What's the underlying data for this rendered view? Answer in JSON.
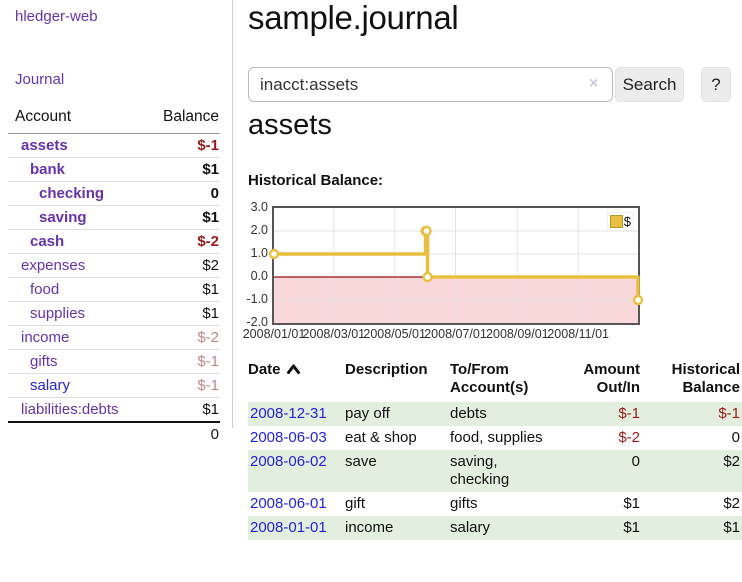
{
  "app": {
    "brand": "hledger-web",
    "nav": {
      "journal": "Journal"
    }
  },
  "theme": {
    "link_purple": "#6633aa",
    "link_blue": "#2323d8",
    "negative_strong": "#9b1a1a",
    "negative_soft": "#c08585",
    "row_stripe_green": "#e3efde",
    "chart_gold": "#e9bf40",
    "chart_negative_pink": "#f8d8d8",
    "chart_zero_line": "#960f0f"
  },
  "sidebar": {
    "columns": {
      "account": "Account",
      "balance": "Balance"
    },
    "accounts": [
      {
        "name": "assets",
        "balance": "$-1"
      },
      {
        "name": "bank",
        "balance": "$1"
      },
      {
        "name": "checking",
        "balance": "0"
      },
      {
        "name": "saving",
        "balance": "$1"
      },
      {
        "name": "cash",
        "balance": "$-2"
      },
      {
        "name": "expenses",
        "balance": "$2"
      },
      {
        "name": "food",
        "balance": "$1"
      },
      {
        "name": "supplies",
        "balance": "$1"
      },
      {
        "name": "income",
        "balance": "$-2"
      },
      {
        "name": "gifts",
        "balance": "$-1"
      },
      {
        "name": "salary",
        "balance": "$-1"
      },
      {
        "name": "liabilities:debts",
        "balance": "$1"
      }
    ],
    "total": "0"
  },
  "main": {
    "title": "sample.journal"
  },
  "search": {
    "value": "inacct:assets",
    "clear_icon": "×",
    "search_button": "Search",
    "help_button": "?"
  },
  "account_page": {
    "heading": "assets",
    "section_label": "Historical Balance:"
  },
  "chart_data": {
    "type": "line",
    "title": "Historical Balance",
    "step": true,
    "legend": [
      {
        "label": "$",
        "color": "#e9bf40"
      }
    ],
    "ylim": [
      -2,
      3
    ],
    "y_ticks": [
      "3.0",
      "2.0",
      "1.0",
      "0.0",
      "-1.0",
      "-2.0"
    ],
    "x_ticks": [
      {
        "label": "2008/01/01",
        "day": 0
      },
      {
        "label": "2008/03/01",
        "day": 60
      },
      {
        "label": "2008/05/01",
        "day": 121
      },
      {
        "label": "2008/07/01",
        "day": 182
      },
      {
        "label": "2008/09/01",
        "day": 244
      },
      {
        "label": "2008/11/01",
        "day": 305
      }
    ],
    "total_days": 365,
    "points": [
      {
        "date": "2008-01-01",
        "day": 0,
        "value": 1
      },
      {
        "date": "2008-06-01",
        "day": 152,
        "value": 2
      },
      {
        "date": "2008-06-02",
        "day": 153,
        "value": 2
      },
      {
        "date": "2008-06-03",
        "day": 154,
        "value": 0
      },
      {
        "date": "2008-12-31",
        "day": 365,
        "value": -1
      }
    ],
    "line_color": "#e9bf40",
    "marker_fill": "#ffffff",
    "negative_region_color": "#f8d8d8",
    "zero_line_color": "#960f0f",
    "grid_color": "#e3e3e3"
  },
  "register": {
    "headers": [
      "Date",
      "Description",
      "To/From Account(s)",
      "Amount Out/In",
      "Historical Balance"
    ],
    "rows": [
      {
        "date": "2008-12-31",
        "description": "pay off",
        "accounts": "debts",
        "amount": "$-1",
        "balance": "$-1"
      },
      {
        "date": "2008-06-03",
        "description": "eat & shop",
        "accounts": "food, supplies",
        "amount": "$-2",
        "balance": "0"
      },
      {
        "date": "2008-06-02",
        "description": "save",
        "accounts": "saving, checking",
        "amount": "0",
        "balance": "$2"
      },
      {
        "date": "2008-06-01",
        "description": "gift",
        "accounts": "gifts",
        "amount": "$1",
        "balance": "$2"
      },
      {
        "date": "2008-01-01",
        "description": "income",
        "accounts": "salary",
        "amount": "$1",
        "balance": "$1"
      }
    ]
  }
}
